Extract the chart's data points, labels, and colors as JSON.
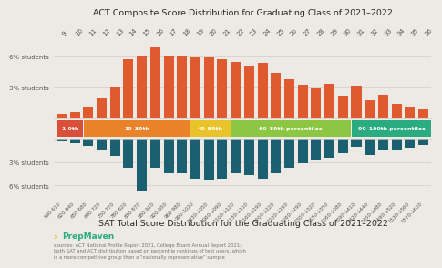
{
  "title_act": "ACT Composite Score Distribution for Graduating Class of 2021–2022",
  "title_sat": "SAT Total Score Distribution for the Graduating Class of 2021–2022",
  "bg_color": "#ede9e4",
  "act_scores": [
    "9",
    "10",
    "11",
    "12",
    "13",
    "14",
    "15",
    "16",
    "17",
    "18",
    "19",
    "20",
    "21",
    "22",
    "23",
    "24",
    "25",
    "26",
    "27",
    "28",
    "29",
    "30",
    "31",
    "32",
    "33",
    "34",
    "35",
    "36"
  ],
  "act_values": [
    0.35,
    0.5,
    1.1,
    1.9,
    3.0,
    5.7,
    6.0,
    6.8,
    6.0,
    6.0,
    5.9,
    5.9,
    5.7,
    5.4,
    5.1,
    5.3,
    4.4,
    3.7,
    3.2,
    2.9,
    3.3,
    2.1,
    3.1,
    1.7,
    2.2,
    1.3,
    1.1,
    0.8
  ],
  "act_bar_color": "#e05a30",
  "sat_ranges": [
    "590-\n610",
    "620-\n640",
    "650-\n680",
    "690-\n720",
    "730-\n770",
    "780-\n820",
    "830-\n870",
    "880-\n910",
    "920-\n950",
    "960-\n980",
    "990-\n1020",
    "1030-\n1050",
    "1060-\n1090",
    "1100-\n1120",
    "1130-\n1150",
    "1160-\n1190",
    "1200-\n1220",
    "1230-\n1250",
    "1260-\n1290",
    "1300-\n1320",
    "1330-\n1350",
    "1360-\n1380",
    "1390-\n1410",
    "1420-\n1440",
    "1450-\n1480",
    "1490-\n1520",
    "1530-\n1560",
    "1570-\n1600"
  ],
  "sat_ranges_flat": [
    "590-610",
    "620-640",
    "650-680",
    "690-720",
    "730-770",
    "780-820",
    "830-870",
    "880-910",
    "920-950",
    "960-980",
    "990-1020",
    "1030-1050",
    "1060-1090",
    "1100-1120",
    "1130-1150",
    "1160-1190",
    "1200-1220",
    "1230-1250",
    "1260-1290",
    "1300-1320",
    "1330-1350",
    "1360-1380",
    "1390-1410",
    "1420-1440",
    "1450-1480",
    "1490-1520",
    "1530-1560",
    "1570-1600"
  ],
  "sat_values": [
    0.3,
    0.5,
    0.9,
    1.4,
    2.2,
    3.7,
    6.8,
    3.7,
    4.4,
    4.4,
    5.1,
    5.4,
    5.1,
    4.4,
    4.7,
    5.1,
    4.4,
    3.7,
    3.1,
    2.7,
    2.4,
    1.8,
    1.0,
    2.1,
    1.4,
    1.4,
    1.1,
    0.7
  ],
  "sat_color": "#1b6070",
  "percentile_labels": [
    "1–9th",
    "10–39th",
    "40–59th",
    "60–89th percentiles",
    "90–100th percentiles"
  ],
  "percentile_colors": [
    "#d94f3a",
    "#e8832a",
    "#e8c42a",
    "#8dc642",
    "#2aab80"
  ],
  "legend_bands": [
    {
      "start": 0,
      "end": 2,
      "label": "1–9th"
    },
    {
      "start": 2,
      "end": 10,
      "label": "10–39th"
    },
    {
      "start": 10,
      "end": 13,
      "label": "40–59th"
    },
    {
      "start": 13,
      "end": 22,
      "label": "60–89th percentiles"
    },
    {
      "start": 22,
      "end": 28,
      "label": "90–100th percentiles"
    }
  ],
  "grid_color": "#d0ccc8",
  "text_color": "#555555",
  "footer_text": "sources: ACT National Profile Report 2021, College Board Annual Report 2021;\nboth SAT and ACT distribution based on percentile rankings of test users, which\nis a more competitive group than a “nationally representative” sample"
}
